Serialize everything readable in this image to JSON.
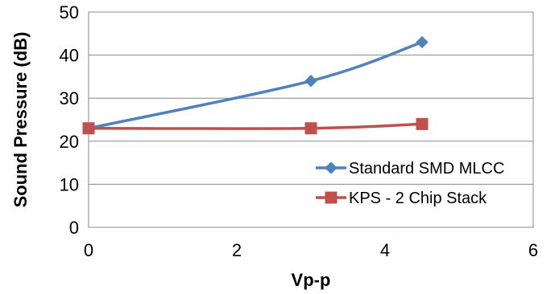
{
  "chart_data": {
    "type": "line",
    "xlabel": "Vp-p",
    "ylabel": "Sound Pressure (dB)",
    "xlim": [
      0,
      6
    ],
    "ylim": [
      0,
      50
    ],
    "xticks": [
      0,
      2,
      4,
      6
    ],
    "yticks": [
      0,
      10,
      20,
      30,
      40,
      50
    ],
    "grid": "horizontal",
    "legend_position": "bottom-right",
    "series": [
      {
        "name": "Standard SMD MLCC",
        "color": "#4f81bd",
        "marker": "diamond",
        "x": [
          0,
          3,
          4.5
        ],
        "y": [
          23,
          34,
          43
        ]
      },
      {
        "name": "KPS - 2 Chip Stack",
        "color": "#c0504d",
        "marker": "square",
        "x": [
          0,
          3,
          4.5
        ],
        "y": [
          23,
          23,
          24
        ]
      }
    ]
  }
}
